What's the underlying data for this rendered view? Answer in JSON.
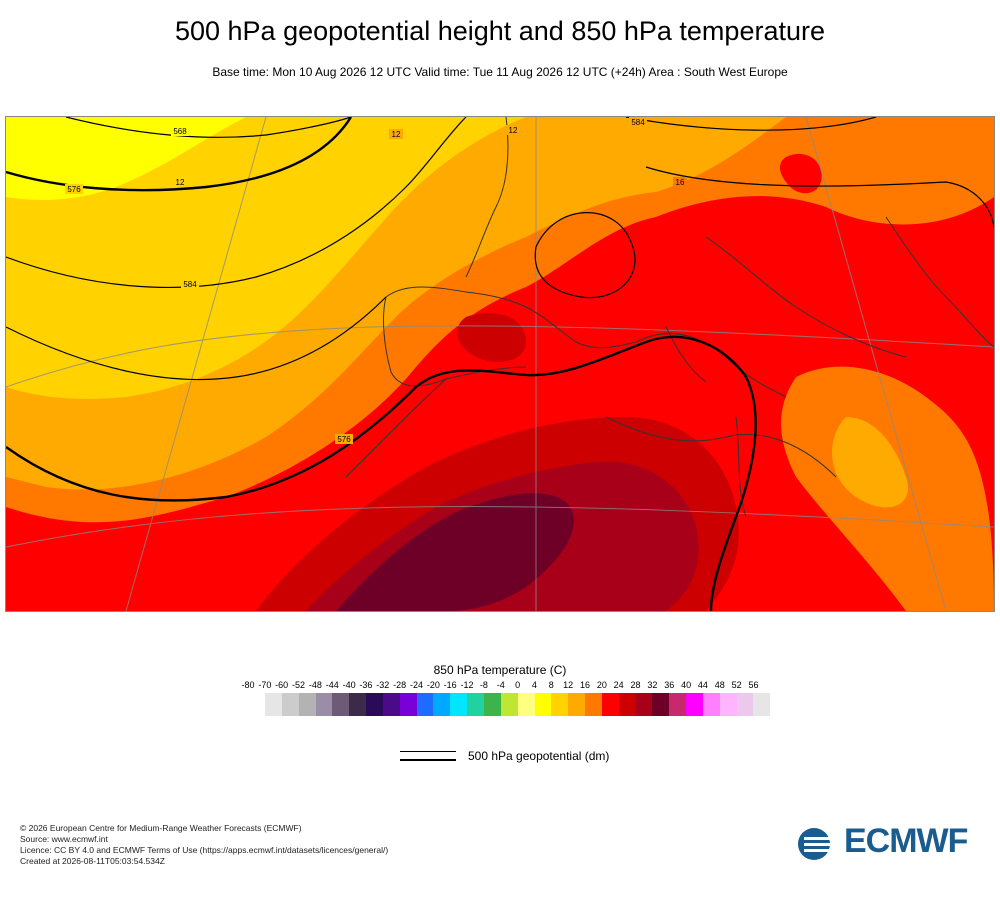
{
  "header": {
    "title": "500 hPa geopotential height and 850 hPa temperature",
    "subtitle": "Base time: Mon 10 Aug 2026 12 UTC Valid time: Tue 11 Aug 2026 12 UTC (+24h) Area : South West Europe"
  },
  "map": {
    "contour_labels": [
      "568",
      "576",
      "584",
      "576",
      "584",
      "12",
      "12",
      "12",
      "16"
    ]
  },
  "legend": {
    "title": "850 hPa temperature (C)",
    "ticks": [
      "-80",
      "-70",
      "-60",
      "-52",
      "-48",
      "-44",
      "-40",
      "-36",
      "-32",
      "-28",
      "-24",
      "-20",
      "-16",
      "-12",
      "-8",
      "-4",
      "0",
      "4",
      "8",
      "12",
      "16",
      "20",
      "24",
      "28",
      "32",
      "36",
      "40",
      "44",
      "48",
      "52",
      "56"
    ],
    "colors": [
      "#e6e6e6",
      "#cccccc",
      "#b3b3b3",
      "#9a8ea6",
      "#6e5a76",
      "#3b2a4a",
      "#2b0a5a",
      "#4a0a8a",
      "#7a00d8",
      "#1e6cff",
      "#00a8ff",
      "#00e6ff",
      "#20d2a0",
      "#3cb44b",
      "#bfe632",
      "#ffff80",
      "#ffff00",
      "#ffd200",
      "#ffaa00",
      "#ff7800",
      "#ff0000",
      "#cc0000",
      "#a80018",
      "#6e0028",
      "#c8286e",
      "#ff00ff",
      "#ff80ff",
      "#ffb4ff",
      "#ecc8ec",
      "#e6e6e6"
    ],
    "geopotential_label": "500 hPa geopotential (dm)"
  },
  "footer": {
    "lines": [
      "© 2026 European Centre for Medium-Range Weather Forecasts (ECMWF)",
      "Source: www.ecmwf.int",
      "Licence: CC BY 4.0 and ECMWF Terms of Use (https://apps.ecmwf.int/datasets/licences/general/)",
      "Created at 2026-08-11T05:03:54.534Z"
    ],
    "logo_text": "ECMWF"
  }
}
